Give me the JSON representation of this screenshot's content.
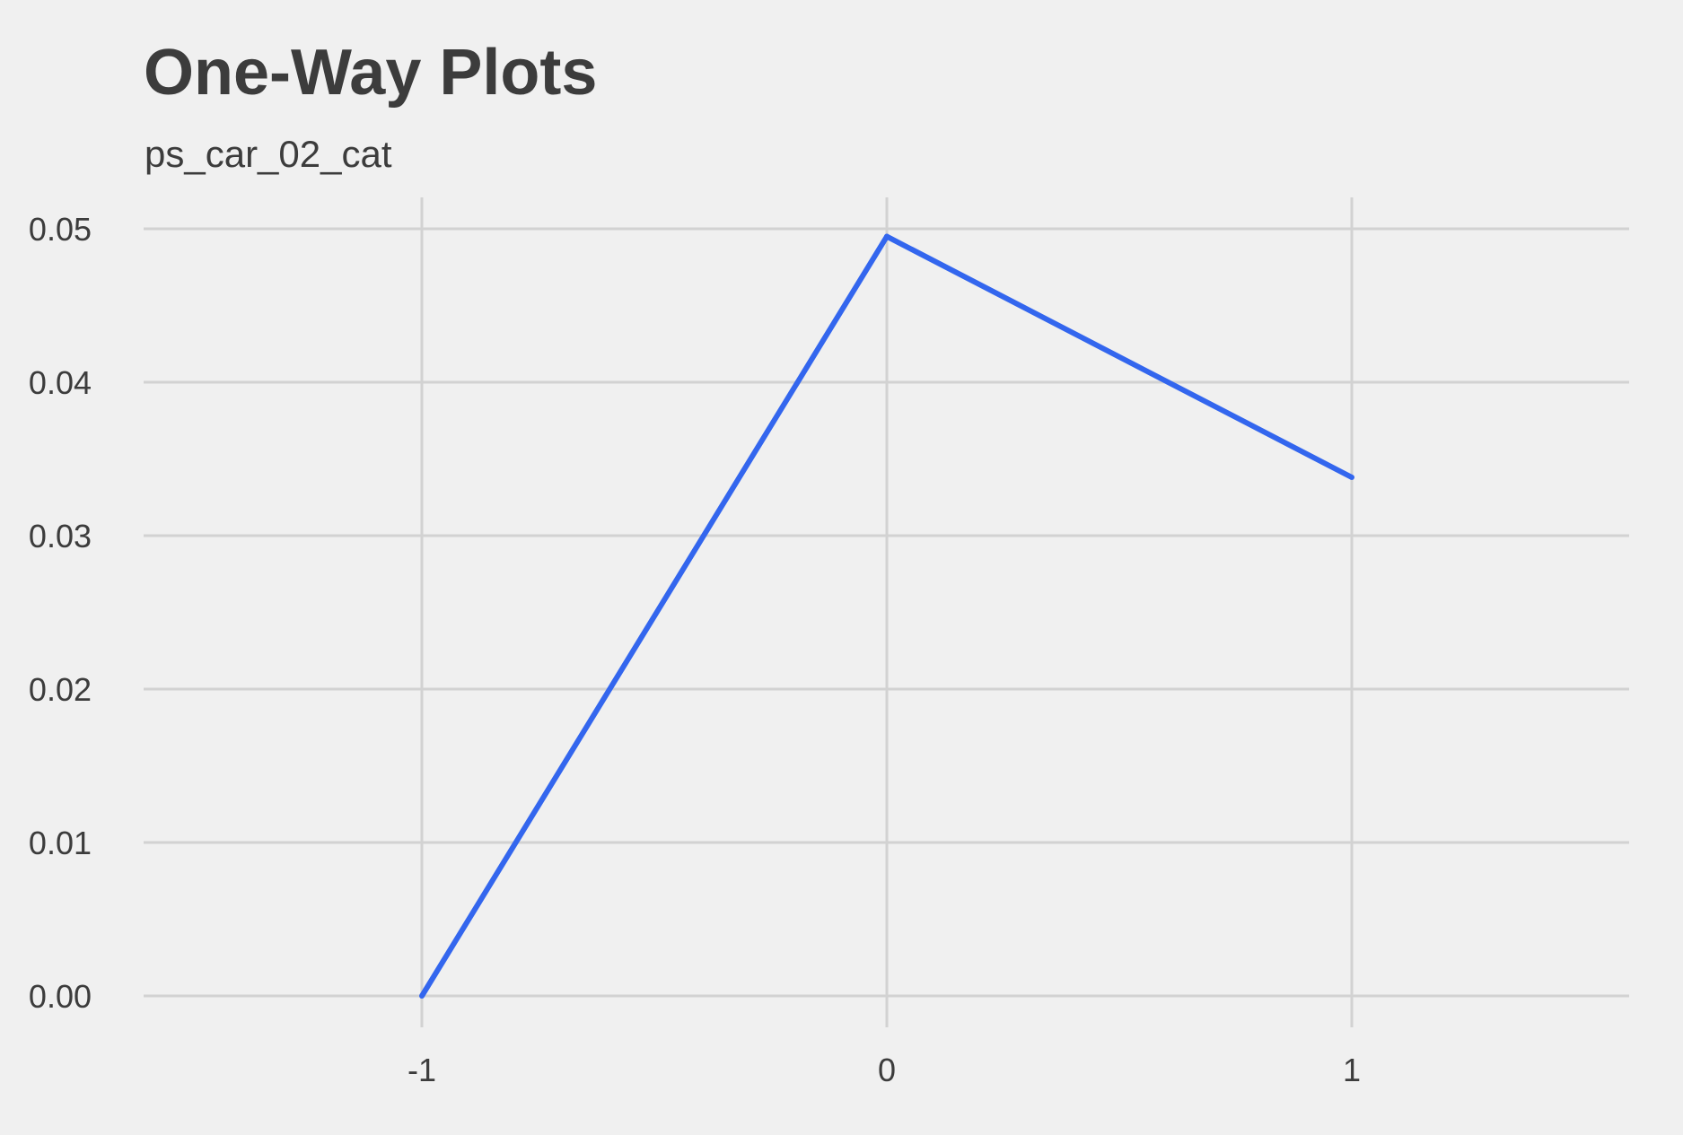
{
  "chart_data": {
    "type": "line",
    "title": "One-Way Plots",
    "subtitle": "ps_car_02_cat",
    "xlabel": "",
    "ylabel": "",
    "x": [
      -1,
      0,
      1
    ],
    "y": [
      0.0,
      0.0495,
      0.0338
    ],
    "xlim": [
      -1.6,
      1.6
    ],
    "ylim": [
      -0.002,
      0.052
    ],
    "x_ticks": [
      -1,
      0,
      1
    ],
    "x_tick_labels": [
      "-1",
      "0",
      "1"
    ],
    "y_ticks": [
      0,
      0.01,
      0.02,
      0.03,
      0.04,
      0.05
    ],
    "y_tick_labels": [
      "0.00",
      "0.01",
      "0.02",
      "0.03",
      "0.04",
      "0.05"
    ],
    "grid": true,
    "legend": "none",
    "line_color": "#3366ee",
    "background_color": "#f0f0f0",
    "grid_color": "#d2d2d2"
  }
}
